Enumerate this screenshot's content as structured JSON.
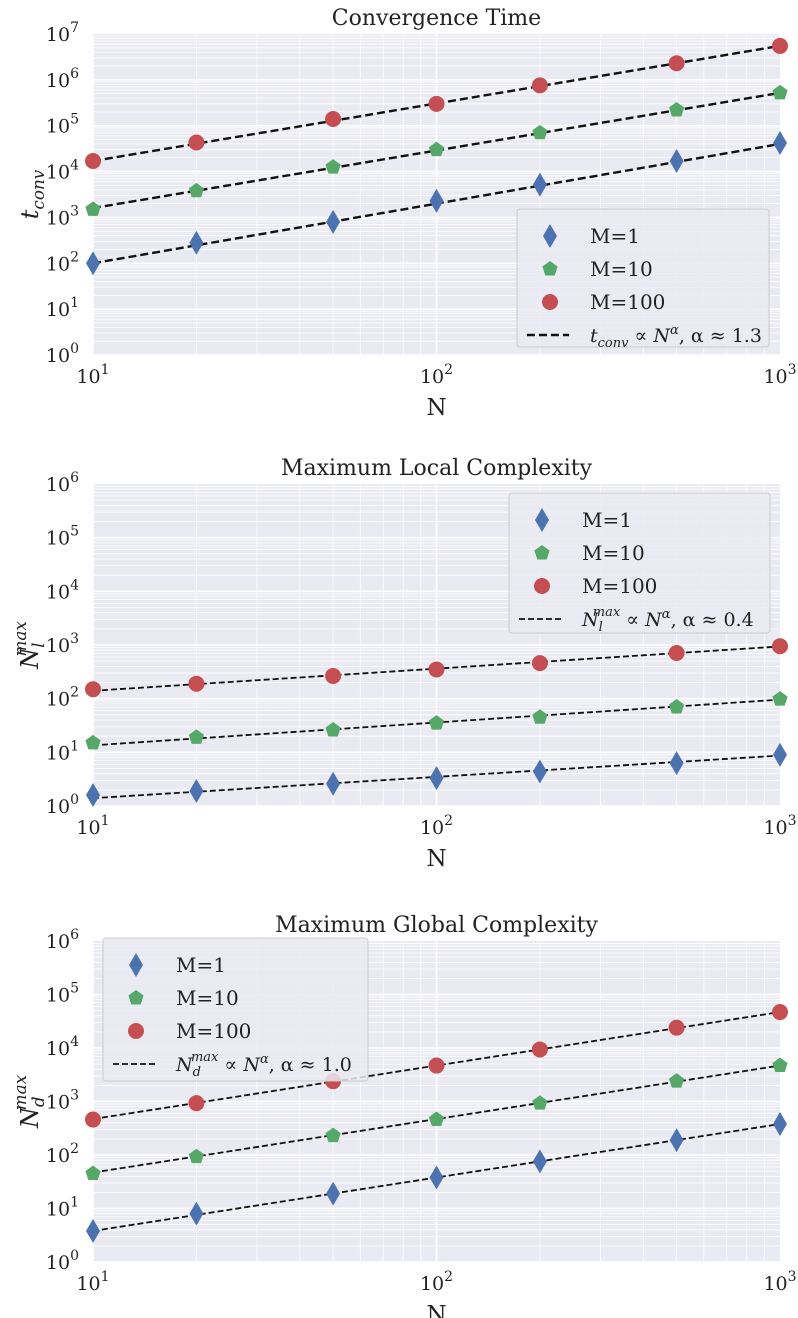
{
  "colors": {
    "M1": "#4c72b0",
    "M10": "#55a868",
    "M100": "#c44e52",
    "plot_bg": "#eaeaf2",
    "grid": "#ffffff",
    "fit_line": "#111111"
  },
  "chart_data": [
    {
      "type": "scatter",
      "title": "Convergence Time",
      "xlabel": "N",
      "ylabel": "t_conv",
      "xscale": "log",
      "yscale": "log",
      "xlim": [
        10,
        1000
      ],
      "ylim": [
        1,
        10000000
      ],
      "x_tick_labels": [
        "10^1",
        "10^2",
        "10^3"
      ],
      "y_tick_labels": [
        "10^0",
        "10^1",
        "10^2",
        "10^3",
        "10^4",
        "10^5",
        "10^6",
        "10^7"
      ],
      "grid": true,
      "legend_position": "lower-right",
      "x": [
        10,
        20,
        50,
        100,
        200,
        500,
        1000
      ],
      "series": [
        {
          "name": "M=1",
          "marker": "diamond",
          "values": [
            100,
            280,
            800,
            2300,
            5200,
            17000,
            42000
          ]
        },
        {
          "name": "M=10",
          "marker": "pentagon",
          "values": [
            1500,
            3800,
            12500,
            30000,
            70000,
            220000,
            520000
          ]
        },
        {
          "name": "M=100",
          "marker": "circle",
          "values": [
            17000,
            43000,
            140000,
            300000,
            760000,
            2300000,
            5500000
          ]
        }
      ],
      "fit": {
        "label": "t_conv ∝ N^α, α ≈ 1.3",
        "alpha": 1.3,
        "lines": [
          {
            "start": 100,
            "end": 40000
          },
          {
            "start": 1600,
            "end": 520000
          },
          {
            "start": 17000,
            "end": 5500000
          }
        ]
      }
    },
    {
      "type": "scatter",
      "title": "Maximum Local Complexity",
      "xlabel": "N",
      "ylabel": "N_l^max",
      "xscale": "log",
      "yscale": "log",
      "xlim": [
        10,
        1000
      ],
      "ylim": [
        1,
        1000000
      ],
      "x_tick_labels": [
        "10^1",
        "10^2",
        "10^3"
      ],
      "y_tick_labels": [
        "10^0",
        "10^1",
        "10^2",
        "10^3",
        "10^4",
        "10^5",
        "10^6"
      ],
      "grid": true,
      "legend_position": "upper-right",
      "x": [
        10,
        20,
        50,
        100,
        200,
        500,
        1000
      ],
      "series": [
        {
          "name": "M=1",
          "marker": "diamond",
          "values": [
            1.6,
            1.9,
            2.6,
            3.3,
            4.4,
            6.3,
            9
          ]
        },
        {
          "name": "M=10",
          "marker": "pentagon",
          "values": [
            15,
            19,
            26,
            35,
            45,
            70,
            98
          ]
        },
        {
          "name": "M=100",
          "marker": "circle",
          "values": [
            150,
            190,
            265,
            350,
            460,
            710,
            950
          ]
        }
      ],
      "fit": {
        "label": "N_l^max ∝ N^α, α ≈ 0.4",
        "alpha": 0.4,
        "lines": [
          {
            "start": 1.4,
            "end": 8.7
          },
          {
            "start": 13.5,
            "end": 96
          },
          {
            "start": 140,
            "end": 940
          }
        ]
      }
    },
    {
      "type": "scatter",
      "title": "Maximum Global Complexity",
      "xlabel": "N",
      "ylabel": "N_d^max",
      "xscale": "log",
      "yscale": "log",
      "xlim": [
        10,
        1000
      ],
      "ylim": [
        1,
        1000000
      ],
      "x_tick_labels": [
        "10^1",
        "10^2",
        "10^3"
      ],
      "y_tick_labels": [
        "10^0",
        "10^1",
        "10^2",
        "10^3",
        "10^4",
        "10^5",
        "10^6"
      ],
      "grid": true,
      "legend_position": "upper-left",
      "x": [
        10,
        20,
        50,
        100,
        200,
        500,
        1000
      ],
      "series": [
        {
          "name": "M=1",
          "marker": "diamond",
          "values": [
            3.8,
            8,
            19,
            38,
            76,
            190,
            380
          ]
        },
        {
          "name": "M=10",
          "marker": "pentagon",
          "values": [
            45,
            93,
            230,
            460,
            930,
            2400,
            4700
          ]
        },
        {
          "name": "M=100",
          "marker": "circle",
          "values": [
            460,
            930,
            2400,
            4700,
            9400,
            24000,
            47000
          ]
        }
      ],
      "fit": {
        "label": "N_d^max ∝ N^α, α ≈ 1.0",
        "alpha": 1.0,
        "lines": [
          {
            "start": 3.8,
            "end": 380
          },
          {
            "start": 47,
            "end": 4700
          },
          {
            "start": 470,
            "end": 47000
          }
        ]
      }
    }
  ]
}
